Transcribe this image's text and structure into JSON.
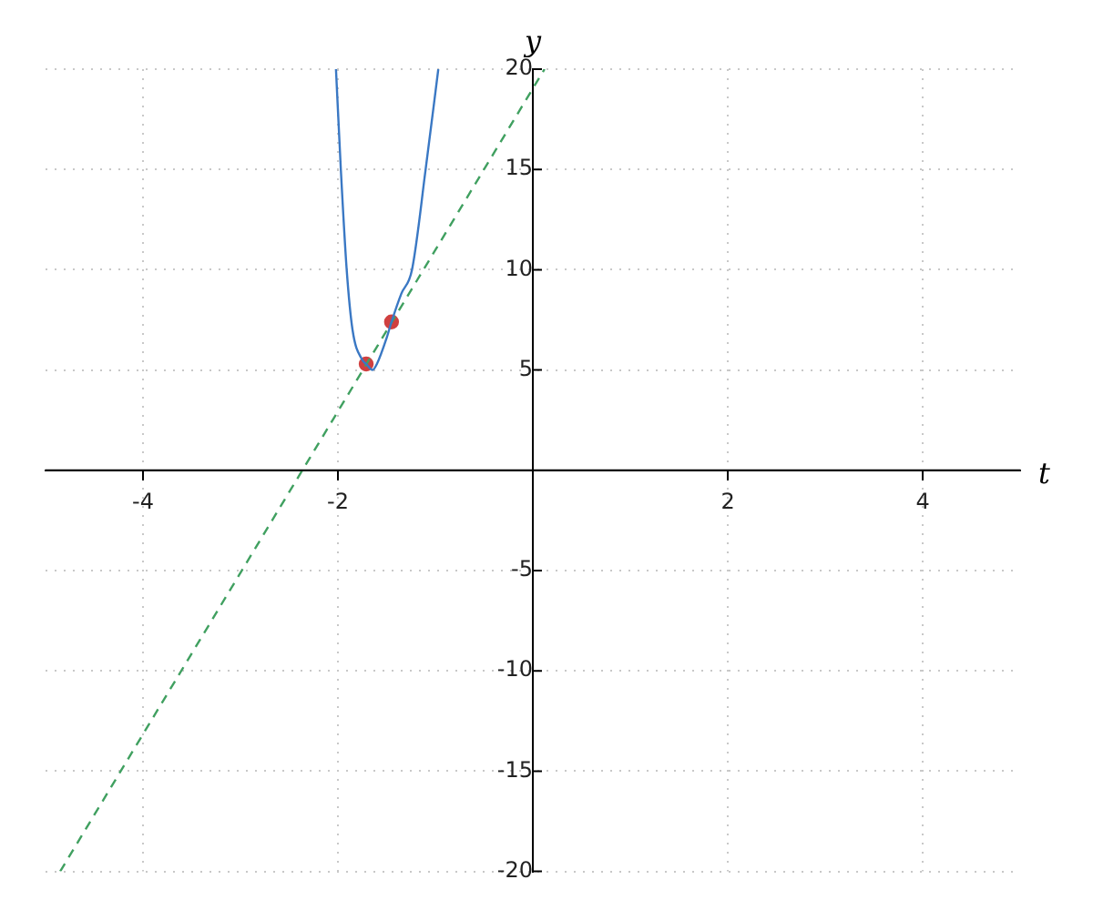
{
  "chart_data": {
    "type": "line",
    "xlabel": "t",
    "ylabel": "y",
    "xlim": [
      -5,
      5
    ],
    "ylim": [
      -20,
      20
    ],
    "xticks": [
      -4,
      -2,
      2,
      4
    ],
    "yticks": [
      -20,
      -15,
      -10,
      -5,
      5,
      10,
      15,
      20
    ],
    "grid": true,
    "legend": false,
    "series": [
      {
        "type": "line",
        "color": "#3a78c4",
        "marker": "none",
        "line_style": "solid",
        "x": [
          -2.02,
          -1.97,
          -1.91,
          -1.85,
          -1.75,
          -1.71,
          -1.645,
          -1.6,
          -1.5,
          -1.45,
          -1.35,
          -1.24,
          -1.1,
          -0.97
        ],
        "values": [
          20,
          15,
          10,
          7,
          5.5,
          5.3,
          5.0,
          5.3,
          6.6,
          7.4,
          8.8,
          10,
          15,
          20
        ]
      },
      {
        "type": "line",
        "color": "#40a060",
        "marker": "none",
        "line_style": "dashed",
        "x": [
          -4.85,
          0.12
        ],
        "values": [
          -20,
          20
        ]
      },
      {
        "type": "scatter",
        "color": "#d04040",
        "marker": "circle",
        "x": [
          -1.71,
          -1.45
        ],
        "values": [
          5.3,
          7.4
        ]
      }
    ]
  }
}
